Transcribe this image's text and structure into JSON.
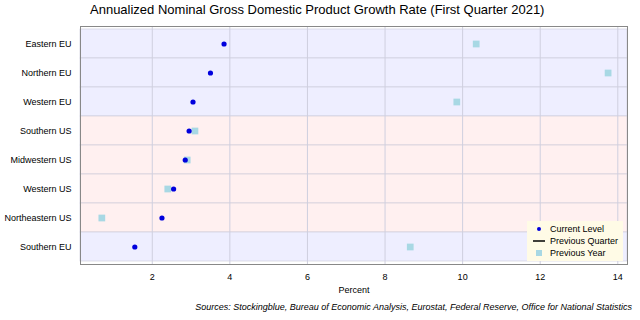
{
  "chart_data": {
    "type": "dot",
    "orientation": "horizontal",
    "title": "Annualized Nominal Gross Domestic Product Growth Rate (First Quarter 2021)",
    "source": "Sources: Stockingblue, Bureau of Economic Analysis, Eurostat, Federal Reserve, Office for National Statistics",
    "x_label": "Percent",
    "categories": [
      "Eastern EU",
      "Northern EU",
      "Western EU",
      "Southern US",
      "Midwestern US",
      "Western US",
      "Northeastern US",
      "Southern EU"
    ],
    "colors": [
      "#eeeeff",
      "#eeeeff",
      "#eeeeff",
      "#fff0f0",
      "#fff0f0",
      "#fff0f0",
      "#fff0f0",
      "#eeeeff"
    ],
    "series": [
      {
        "name": "Current Level",
        "color": "#0000dd",
        "marker": "circle",
        "values": [
          3.85,
          3.5,
          3.05,
          2.95,
          2.85,
          2.55,
          2.25,
          1.55
        ]
      },
      {
        "name": "Previous Quarter",
        "color": "#000000",
        "marker": "line",
        "values": [
          null,
          null,
          null,
          null,
          null,
          null,
          null,
          null
        ]
      },
      {
        "name": "Previous Year",
        "color": "#a8d8e4",
        "marker": "square",
        "values": [
          10.35,
          13.75,
          9.85,
          3.1,
          2.9,
          2.4,
          0.7,
          8.65
        ]
      }
    ],
    "xlim": [
      0.15,
      14.25
    ],
    "xticks": [
      2,
      4,
      6,
      8,
      10,
      12,
      14
    ],
    "grid": true,
    "legend": "bottom-right"
  }
}
